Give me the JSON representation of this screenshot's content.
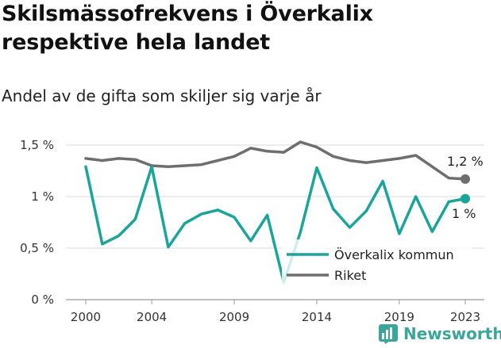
{
  "header": {
    "title": "Skilsmässofrekvens i Överkalix respektive hela landet",
    "subtitle": "Andel av de gifta som skiljer sig varje år"
  },
  "brand": {
    "name": "Newsworthy",
    "logo_icon": "newsworthy-logo-icon",
    "color": "#3aa69a"
  },
  "chart_data": {
    "type": "line",
    "title": "Skilsmässofrekvens i Överkalix respektive hela landet",
    "subtitle": "Andel av de gifta som skiljer sig varje år",
    "xlabel": "",
    "ylabel": "",
    "x": [
      2000,
      2001,
      2002,
      2003,
      2004,
      2005,
      2006,
      2007,
      2008,
      2009,
      2010,
      2011,
      2012,
      2013,
      2014,
      2015,
      2016,
      2017,
      2018,
      2019,
      2020,
      2021,
      2022,
      2023
    ],
    "x_ticks": [
      "2000",
      "2004",
      "2009",
      "2014",
      "2019",
      "2023"
    ],
    "y_ticks": [
      "0 %",
      "0,5 %",
      "1 %",
      "1,5 %"
    ],
    "ylim": [
      0,
      1.5
    ],
    "grid": true,
    "legend_position": "bottom-right",
    "series": [
      {
        "name": "Överkalix kommun",
        "color": "#1aa59b",
        "values": [
          1.29,
          0.54,
          0.62,
          0.78,
          1.29,
          0.51,
          0.74,
          0.83,
          0.87,
          0.8,
          0.57,
          0.82,
          0.17,
          0.65,
          1.28,
          0.88,
          0.7,
          0.86,
          1.15,
          0.64,
          1.0,
          0.66,
          0.95,
          0.98
        ],
        "end_label": "1 %"
      },
      {
        "name": "Riket",
        "color": "#6d6e71",
        "values": [
          1.37,
          1.35,
          1.37,
          1.36,
          1.3,
          1.29,
          1.3,
          1.31,
          1.35,
          1.39,
          1.47,
          1.44,
          1.43,
          1.53,
          1.48,
          1.39,
          1.35,
          1.33,
          1.35,
          1.37,
          1.4,
          1.29,
          1.18,
          1.17
        ],
        "end_label": "1,2 %"
      }
    ]
  }
}
